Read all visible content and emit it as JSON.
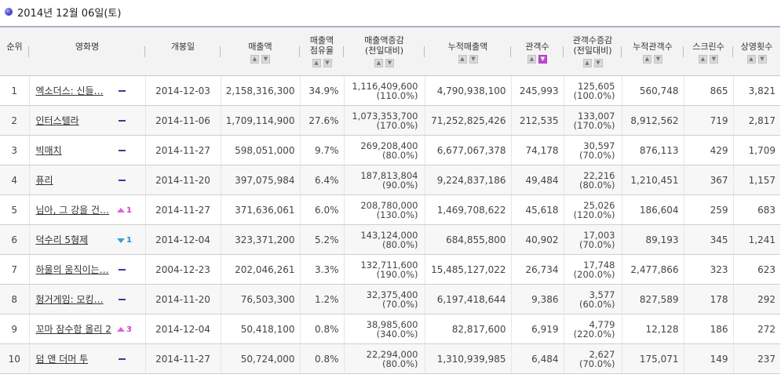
{
  "page": {
    "date_title": "2014년 12월 06일(토)"
  },
  "table": {
    "headers": {
      "rank": "순위",
      "title": "영화명",
      "open": "개봉일",
      "sales": "매출액",
      "share_l1": "매출액",
      "share_l2": "점유율",
      "sales_chg_l1": "매출액증감",
      "sales_chg_l2": "(전일대비)",
      "cum_sales": "누적매출액",
      "audience": "관객수",
      "aud_chg_l1": "관객수증감",
      "aud_chg_l2": "(전일대비)",
      "cum_audience": "누적관객수",
      "screens": "스크린수",
      "shows": "상영횟수"
    },
    "sort_up_icon": "▲",
    "sort_down_icon": "▼",
    "active_sort_color": "#c24ad6",
    "rows": [
      {
        "rank": "1",
        "title": "엑소더스: 신들…",
        "change_dir": "none",
        "change": "",
        "open": "2014-12-03",
        "sales": "2,158,316,300",
        "share": "34.9%",
        "sales_chg": "1,116,409,600",
        "sales_chg_pct": "(110.0%)",
        "cum_sales": "4,790,938,100",
        "audience": "245,993",
        "aud_chg": "125,605",
        "aud_chg_pct": "(100.0%)",
        "cum_audience": "560,748",
        "screens": "865",
        "shows": "3,821"
      },
      {
        "rank": "2",
        "title": "인터스텔라",
        "change_dir": "none",
        "change": "",
        "open": "2014-11-06",
        "sales": "1,709,114,900",
        "share": "27.6%",
        "sales_chg": "1,073,353,700",
        "sales_chg_pct": "(170.0%)",
        "cum_sales": "71,252,825,426",
        "audience": "212,535",
        "aud_chg": "133,007",
        "aud_chg_pct": "(170.0%)",
        "cum_audience": "8,912,562",
        "screens": "719",
        "shows": "2,817"
      },
      {
        "rank": "3",
        "title": "빅매치",
        "change_dir": "none",
        "change": "",
        "open": "2014-11-27",
        "sales": "598,051,000",
        "share": "9.7%",
        "sales_chg": "269,208,400",
        "sales_chg_pct": "(80.0%)",
        "cum_sales": "6,677,067,378",
        "audience": "74,178",
        "aud_chg": "30,597",
        "aud_chg_pct": "(70.0%)",
        "cum_audience": "876,113",
        "screens": "429",
        "shows": "1,709"
      },
      {
        "rank": "4",
        "title": "퓨리",
        "change_dir": "none",
        "change": "",
        "open": "2014-11-20",
        "sales": "397,075,984",
        "share": "6.4%",
        "sales_chg": "187,813,804",
        "sales_chg_pct": "(90.0%)",
        "cum_sales": "9,224,837,186",
        "audience": "49,484",
        "aud_chg": "22,216",
        "aud_chg_pct": "(80.0%)",
        "cum_audience": "1,210,451",
        "screens": "367",
        "shows": "1,157"
      },
      {
        "rank": "5",
        "title": "님아, 그 강을 건…",
        "change_dir": "up",
        "change": "1",
        "open": "2014-11-27",
        "sales": "371,636,061",
        "share": "6.0%",
        "sales_chg": "208,780,000",
        "sales_chg_pct": "(130.0%)",
        "cum_sales": "1,469,708,622",
        "audience": "45,618",
        "aud_chg": "25,026",
        "aud_chg_pct": "(120.0%)",
        "cum_audience": "186,604",
        "screens": "259",
        "shows": "683"
      },
      {
        "rank": "6",
        "title": "덕수리 5형제",
        "change_dir": "down",
        "change": "1",
        "open": "2014-12-04",
        "sales": "323,371,200",
        "share": "5.2%",
        "sales_chg": "143,124,000",
        "sales_chg_pct": "(80.0%)",
        "cum_sales": "684,855,800",
        "audience": "40,902",
        "aud_chg": "17,003",
        "aud_chg_pct": "(70.0%)",
        "cum_audience": "89,193",
        "screens": "345",
        "shows": "1,241"
      },
      {
        "rank": "7",
        "title": "하울의 움직이는…",
        "change_dir": "none",
        "change": "",
        "open": "2004-12-23",
        "sales": "202,046,261",
        "share": "3.3%",
        "sales_chg": "132,711,600",
        "sales_chg_pct": "(190.0%)",
        "cum_sales": "15,485,127,022",
        "audience": "26,734",
        "aud_chg": "17,748",
        "aud_chg_pct": "(200.0%)",
        "cum_audience": "2,477,866",
        "screens": "323",
        "shows": "623"
      },
      {
        "rank": "8",
        "title": "헝거게임: 모킹…",
        "change_dir": "none",
        "change": "",
        "open": "2014-11-20",
        "sales": "76,503,300",
        "share": "1.2%",
        "sales_chg": "32,375,400",
        "sales_chg_pct": "(70.0%)",
        "cum_sales": "6,197,418,644",
        "audience": "9,386",
        "aud_chg": "3,577",
        "aud_chg_pct": "(60.0%)",
        "cum_audience": "827,589",
        "screens": "178",
        "shows": "292"
      },
      {
        "rank": "9",
        "title": "꼬마 잠수함 올리 2",
        "change_dir": "up",
        "change": "3",
        "open": "2014-12-04",
        "sales": "50,418,100",
        "share": "0.8%",
        "sales_chg": "38,985,600",
        "sales_chg_pct": "(340.0%)",
        "cum_sales": "82,817,600",
        "audience": "6,919",
        "aud_chg": "4,779",
        "aud_chg_pct": "(220.0%)",
        "cum_audience": "12,128",
        "screens": "186",
        "shows": "272"
      },
      {
        "rank": "10",
        "title": "덤 앤 더머 투",
        "change_dir": "none",
        "change": "",
        "open": "2014-11-27",
        "sales": "50,724,000",
        "share": "0.8%",
        "sales_chg": "22,294,000",
        "sales_chg_pct": "(80.0%)",
        "cum_sales": "1,310,939,985",
        "audience": "6,484",
        "aud_chg": "2,627",
        "aud_chg_pct": "(70.0%)",
        "cum_audience": "175,071",
        "screens": "149",
        "shows": "237"
      }
    ]
  }
}
